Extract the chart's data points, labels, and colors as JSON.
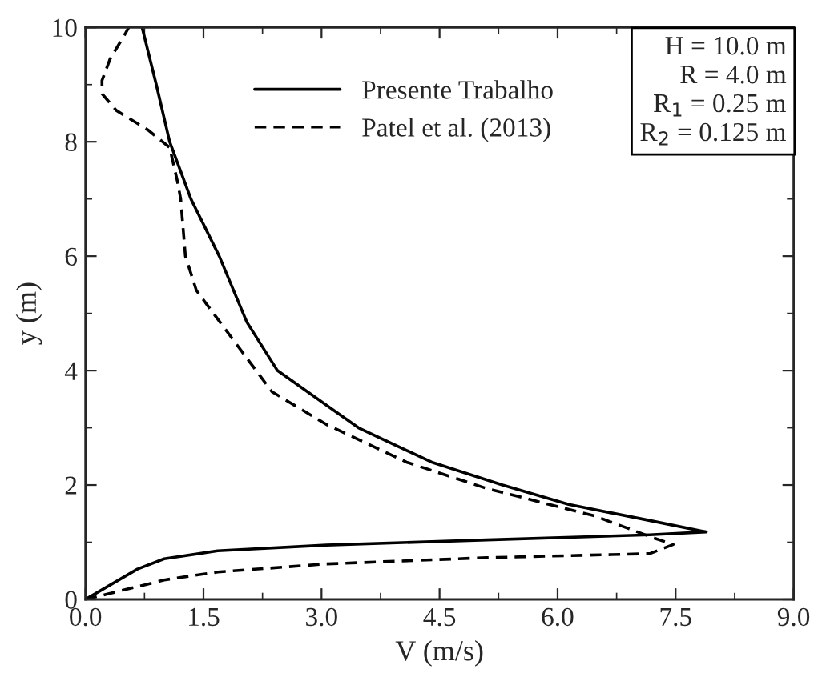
{
  "chart_data": {
    "type": "line",
    "xlabel": "V (m/s)",
    "ylabel": "y (m)",
    "xlim": [
      0,
      9
    ],
    "ylim": [
      0,
      10
    ],
    "xticks": [
      {
        "value": 0,
        "label": "0.0"
      },
      {
        "value": 1.5,
        "label": "1.5"
      },
      {
        "value": 3,
        "label": "3.0"
      },
      {
        "value": 4.5,
        "label": "4.5"
      },
      {
        "value": 6,
        "label": "6.0"
      },
      {
        "value": 7.5,
        "label": "7.5"
      },
      {
        "value": 9,
        "label": "9.0"
      }
    ],
    "yticks": [
      0,
      2,
      4,
      6,
      8,
      10
    ],
    "legend": "top",
    "grid": false,
    "annotations": [
      "H = 10.0 m",
      "R = 4.0 m",
      "R$_{1}$ = 0.25 m",
      "R$_{2}$ = 0.125 m"
    ],
    "series": [
      {
        "name": "Presente Trabalho",
        "color": "#000000",
        "line_style": "solid",
        "x": [
          0,
          0.66,
          1.0,
          1.68,
          3.06,
          5.1,
          7.17,
          7.89,
          7.17,
          6.14,
          5.3,
          4.4,
          3.47,
          2.44,
          2.05,
          1.7,
          1.34,
          1.07,
          0.9,
          0.72
        ],
        "values": [
          0,
          0.53,
          0.71,
          0.85,
          0.95,
          1.04,
          1.13,
          1.18,
          1.38,
          1.66,
          2.0,
          2.4,
          3.0,
          4.0,
          4.85,
          6.0,
          7.0,
          8.0,
          9.0,
          10.0
        ]
      },
      {
        "name": "Patel et al. (2013)",
        "color": "#000000",
        "line_style": "dashed",
        "x": [
          0,
          0.3,
          1.0,
          1.68,
          3.06,
          5.1,
          7.17,
          7.47,
          7.23,
          6.47,
          5.1,
          4.08,
          3.06,
          2.37,
          1.41,
          1.27,
          1.21,
          1.17,
          1.07,
          0.8,
          0.39,
          0.21,
          0.21,
          0.31,
          0.51,
          0.55
        ],
        "values": [
          0,
          0.1,
          0.34,
          0.48,
          0.62,
          0.73,
          0.8,
          0.96,
          1.07,
          1.46,
          1.94,
          2.4,
          3.06,
          3.63,
          5.4,
          6.0,
          7.0,
          7.3,
          7.9,
          8.2,
          8.55,
          8.84,
          9.07,
          9.44,
          9.9,
          10.0
        ]
      }
    ]
  }
}
